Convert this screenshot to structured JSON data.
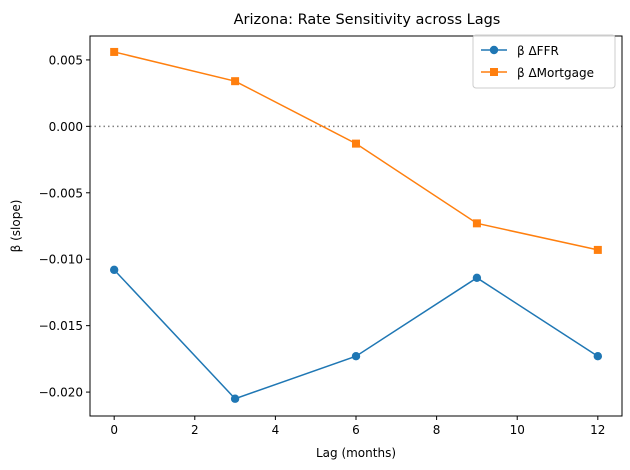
{
  "chart_data": {
    "type": "line",
    "title": "Arizona: Rate Sensitivity across Lags",
    "xlabel": "Lag (months)",
    "ylabel": "β (slope)",
    "x": [
      0,
      3,
      6,
      9,
      12
    ],
    "xlim": [
      -0.6,
      12.6
    ],
    "ylim": [
      -0.0218,
      0.0068
    ],
    "xticks": [
      0,
      2,
      4,
      6,
      8,
      10,
      12
    ],
    "xtick_labels": [
      "0",
      "2",
      "4",
      "6",
      "8",
      "10",
      "12"
    ],
    "yticks": [
      0.005,
      0.0,
      -0.005,
      -0.01,
      -0.015,
      -0.02
    ],
    "ytick_labels": [
      "0.005",
      "0.000",
      "−0.005",
      "−0.010",
      "−0.015",
      "−0.020"
    ],
    "reference_line": {
      "y": 0.0,
      "style": "dotted",
      "color": "#808080"
    },
    "grid": false,
    "legend_position": "top-right",
    "series": [
      {
        "name": "β ΔFFR",
        "marker": "circle",
        "color": "#1f77b4",
        "values": [
          -0.0108,
          -0.0205,
          -0.0173,
          -0.0114,
          -0.0173
        ]
      },
      {
        "name": "β ΔMortgage",
        "marker": "square",
        "color": "#ff7f0e",
        "values": [
          0.0056,
          0.0034,
          -0.0013,
          -0.0073,
          -0.0093
        ]
      }
    ]
  }
}
